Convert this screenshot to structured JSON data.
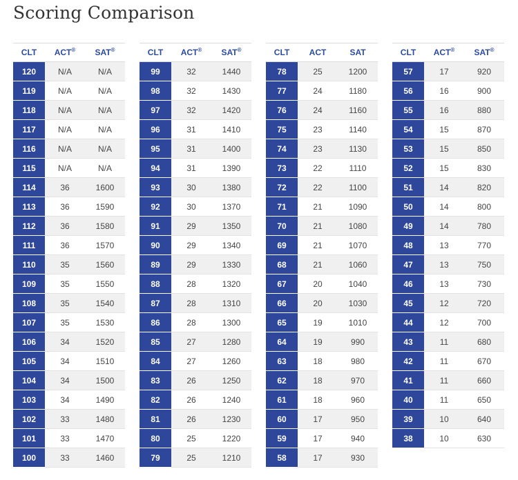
{
  "title": "Scoring Comparison",
  "headers": {
    "clt": "CLT",
    "act": "ACT",
    "sat": "SAT",
    "registered_mark": "®"
  },
  "tables": [
    {
      "show_marks": true,
      "rows": [
        [
          "120",
          "N/A",
          "N/A"
        ],
        [
          "119",
          "N/A",
          "N/A"
        ],
        [
          "118",
          "N/A",
          "N/A"
        ],
        [
          "117",
          "N/A",
          "N/A"
        ],
        [
          "116",
          "N/A",
          "N/A"
        ],
        [
          "115",
          "N/A",
          "N/A"
        ],
        [
          "114",
          "36",
          "1600"
        ],
        [
          "113",
          "36",
          "1590"
        ],
        [
          "112",
          "36",
          "1580"
        ],
        [
          "111",
          "36",
          "1570"
        ],
        [
          "110",
          "35",
          "1560"
        ],
        [
          "109",
          "35",
          "1550"
        ],
        [
          "108",
          "35",
          "1540"
        ],
        [
          "107",
          "35",
          "1530"
        ],
        [
          "106",
          "34",
          "1520"
        ],
        [
          "105",
          "34",
          "1510"
        ],
        [
          "104",
          "34",
          "1500"
        ],
        [
          "103",
          "34",
          "1490"
        ],
        [
          "102",
          "33",
          "1480"
        ],
        [
          "101",
          "33",
          "1470"
        ],
        [
          "100",
          "33",
          "1460"
        ]
      ]
    },
    {
      "show_marks": true,
      "rows": [
        [
          "99",
          "32",
          "1440"
        ],
        [
          "98",
          "32",
          "1430"
        ],
        [
          "97",
          "32",
          "1420"
        ],
        [
          "96",
          "31",
          "1410"
        ],
        [
          "95",
          "31",
          "1400"
        ],
        [
          "94",
          "31",
          "1390"
        ],
        [
          "93",
          "30",
          "1380"
        ],
        [
          "92",
          "30",
          "1370"
        ],
        [
          "91",
          "29",
          "1350"
        ],
        [
          "90",
          "29",
          "1340"
        ],
        [
          "89",
          "29",
          "1330"
        ],
        [
          "88",
          "28",
          "1320"
        ],
        [
          "87",
          "28",
          "1310"
        ],
        [
          "86",
          "28",
          "1300"
        ],
        [
          "85",
          "27",
          "1280"
        ],
        [
          "84",
          "27",
          "1260"
        ],
        [
          "83",
          "26",
          "1250"
        ],
        [
          "82",
          "26",
          "1240"
        ],
        [
          "81",
          "26",
          "1230"
        ],
        [
          "80",
          "25",
          "1220"
        ],
        [
          "79",
          "25",
          "1210"
        ]
      ]
    },
    {
      "show_marks": false,
      "rows": [
        [
          "78",
          "25",
          "1200"
        ],
        [
          "77",
          "24",
          "1180"
        ],
        [
          "76",
          "24",
          "1160"
        ],
        [
          "75",
          "23",
          "1140"
        ],
        [
          "74",
          "23",
          "1130"
        ],
        [
          "73",
          "22",
          "1110"
        ],
        [
          "72",
          "22",
          "1100"
        ],
        [
          "71",
          "21",
          "1090"
        ],
        [
          "70",
          "21",
          "1080"
        ],
        [
          "69",
          "21",
          "1070"
        ],
        [
          "68",
          "21",
          "1060"
        ],
        [
          "67",
          "20",
          "1040"
        ],
        [
          "66",
          "20",
          "1030"
        ],
        [
          "65",
          "19",
          "1010"
        ],
        [
          "64",
          "19",
          "990"
        ],
        [
          "63",
          "18",
          "980"
        ],
        [
          "62",
          "18",
          "970"
        ],
        [
          "61",
          "18",
          "960"
        ],
        [
          "60",
          "17",
          "950"
        ],
        [
          "59",
          "17",
          "940"
        ],
        [
          "58",
          "17",
          "930"
        ]
      ]
    },
    {
      "show_marks": true,
      "rows": [
        [
          "57",
          "17",
          "920"
        ],
        [
          "56",
          "16",
          "900"
        ],
        [
          "55",
          "16",
          "880"
        ],
        [
          "54",
          "15",
          "870"
        ],
        [
          "53",
          "15",
          "850"
        ],
        [
          "52",
          "15",
          "830"
        ],
        [
          "51",
          "14",
          "820"
        ],
        [
          "50",
          "14",
          "800"
        ],
        [
          "49",
          "14",
          "780"
        ],
        [
          "48",
          "13",
          "770"
        ],
        [
          "47",
          "13",
          "750"
        ],
        [
          "46",
          "13",
          "730"
        ],
        [
          "45",
          "12",
          "720"
        ],
        [
          "44",
          "12",
          "700"
        ],
        [
          "43",
          "11",
          "680"
        ],
        [
          "42",
          "11",
          "670"
        ],
        [
          "41",
          "11",
          "660"
        ],
        [
          "40",
          "11",
          "650"
        ],
        [
          "39",
          "10",
          "640"
        ],
        [
          "38",
          "10",
          "630"
        ]
      ]
    }
  ]
}
